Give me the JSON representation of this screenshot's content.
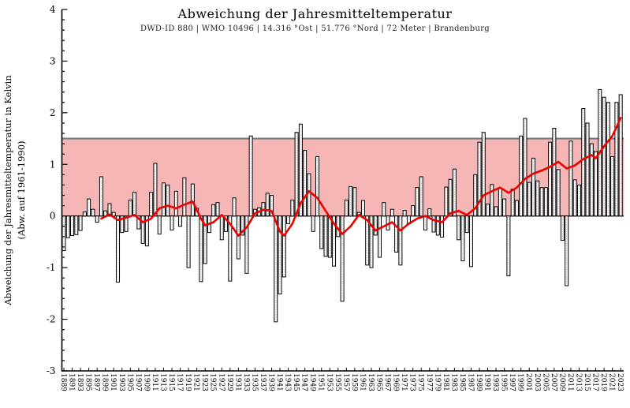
{
  "header": {
    "title": "Abweichung der Jahresmitteltemperatur",
    "subtitle": "DWD-ID 880  |  WMO 10496  |  14.316 °Ost  |  51.776 °Nord  |  72 Meter  |  Brandenburg"
  },
  "y_axis": {
    "label_line1": "Abweichung der Jahresmitteltemperatur in Kelvin",
    "label_line2": "(Abw. auf 1961-1990)",
    "ticks": [
      4,
      3,
      2,
      1,
      0,
      -1,
      -2,
      -3
    ]
  },
  "chart_data": {
    "type": "bar",
    "title": "Abweichung der Jahresmitteltemperatur",
    "subtitle": "DWD-ID 880 | WMO 10496 | 14.316 °Ost | 51.776 °Nord | 72 Meter | Brandenburg",
    "xlabel": "",
    "ylabel": "Abweichung der Jahresmitteltemperatur in Kelvin (Abw. auf 1961-1990)",
    "ylim": [
      -3,
      4
    ],
    "grid": false,
    "legend": "none",
    "reference_band": {
      "from": 0,
      "to": 1.5
    },
    "start_year": 1889,
    "end_year": 2023,
    "x_tick_years": [
      1889,
      1891,
      1893,
      1895,
      1897,
      1899,
      1901,
      1903,
      1905,
      1907,
      1909,
      1911,
      1913,
      1915,
      1917,
      1919,
      1921,
      1923,
      1925,
      1927,
      1929,
      1931,
      1933,
      1935,
      1937,
      1939,
      1941,
      1943,
      1945,
      1947,
      1949,
      1951,
      1953,
      1955,
      1957,
      1959,
      1961,
      1963,
      1965,
      1967,
      1969,
      1971,
      1973,
      1975,
      1977,
      1979,
      1981,
      1983,
      1985,
      1987,
      1989,
      1991,
      1993,
      1995,
      1997,
      1999,
      2001,
      2003,
      2005,
      2007,
      2009,
      2011,
      2013,
      2015,
      2017,
      2019,
      2021,
      2023
    ],
    "values": [
      -0.67,
      -0.42,
      -0.38,
      -0.36,
      -0.28,
      0.08,
      0.33,
      0.13,
      -0.12,
      0.76,
      0.1,
      0.24,
      0.07,
      -1.28,
      -0.32,
      -0.3,
      0.31,
      0.46,
      -0.25,
      -0.53,
      -0.58,
      0.46,
      1.02,
      -0.35,
      0.64,
      0.6,
      -0.27,
      0.48,
      -0.2,
      0.74,
      -1.0,
      0.62,
      0.15,
      -1.27,
      -0.92,
      -0.32,
      0.22,
      0.26,
      -0.46,
      -0.3,
      -1.26,
      0.35,
      -0.83,
      -0.37,
      -1.11,
      1.55,
      0.13,
      0.16,
      0.26,
      0.44,
      0.4,
      -2.05,
      -1.51,
      -1.18,
      -0.15,
      0.31,
      1.62,
      1.78,
      1.27,
      0.82,
      -0.3,
      1.15,
      -0.63,
      -0.78,
      -0.8,
      -0.97,
      -0.4,
      -1.65,
      0.31,
      0.57,
      0.55,
      0.07,
      0.3,
      -0.95,
      -1.0,
      -0.37,
      -0.8,
      0.26,
      -0.27,
      0.13,
      -0.7,
      -0.95,
      0.11,
      -0.15,
      0.2,
      0.55,
      0.76,
      -0.27,
      0.14,
      -0.31,
      -0.37,
      -0.41,
      0.56,
      0.71,
      0.91,
      -0.46,
      -0.87,
      -0.32,
      -0.98,
      0.8,
      1.43,
      1.62,
      0.23,
      0.61,
      0.18,
      0.53,
      0.33,
      -1.16,
      0.52,
      0.3,
      1.55,
      1.89,
      0.65,
      1.12,
      0.68,
      0.55,
      0.55,
      1.43,
      1.7,
      0.9,
      -0.47,
      -1.35,
      1.45,
      0.7,
      0.6,
      2.08,
      1.8,
      1.4,
      1.25,
      2.45,
      2.3,
      2.2,
      1.15,
      2.2,
      2.35
    ],
    "trend_line": {
      "points": [
        [
          1898,
          -0.05
        ],
        [
          1900,
          0.03
        ],
        [
          1902,
          -0.08
        ],
        [
          1904,
          -0.03
        ],
        [
          1906,
          0.02
        ],
        [
          1908,
          -0.12
        ],
        [
          1910,
          -0.05
        ],
        [
          1912,
          0.15
        ],
        [
          1914,
          0.2
        ],
        [
          1916,
          0.15
        ],
        [
          1918,
          0.22
        ],
        [
          1920,
          0.28
        ],
        [
          1922,
          -0.05
        ],
        [
          1923,
          -0.18
        ],
        [
          1925,
          -0.12
        ],
        [
          1927,
          0.02
        ],
        [
          1929,
          -0.15
        ],
        [
          1931,
          -0.38
        ],
        [
          1933,
          -0.22
        ],
        [
          1935,
          0.05
        ],
        [
          1937,
          0.12
        ],
        [
          1939,
          0.1
        ],
        [
          1941,
          -0.3
        ],
        [
          1942,
          -0.38
        ],
        [
          1944,
          -0.15
        ],
        [
          1946,
          0.25
        ],
        [
          1948,
          0.48
        ],
        [
          1950,
          0.35
        ],
        [
          1952,
          0.1
        ],
        [
          1954,
          -0.15
        ],
        [
          1956,
          -0.35
        ],
        [
          1958,
          -0.2
        ],
        [
          1960,
          0.02
        ],
        [
          1962,
          -0.08
        ],
        [
          1964,
          -0.28
        ],
        [
          1966,
          -0.2
        ],
        [
          1968,
          -0.12
        ],
        [
          1970,
          -0.28
        ],
        [
          1972,
          -0.15
        ],
        [
          1974,
          -0.05
        ],
        [
          1976,
          0.0
        ],
        [
          1978,
          -0.08
        ],
        [
          1980,
          -0.12
        ],
        [
          1982,
          0.05
        ],
        [
          1984,
          0.1
        ],
        [
          1986,
          0.02
        ],
        [
          1988,
          0.15
        ],
        [
          1990,
          0.4
        ],
        [
          1992,
          0.48
        ],
        [
          1994,
          0.55
        ],
        [
          1996,
          0.45
        ],
        [
          1998,
          0.55
        ],
        [
          2000,
          0.72
        ],
        [
          2002,
          0.82
        ],
        [
          2004,
          0.88
        ],
        [
          2006,
          0.95
        ],
        [
          2008,
          1.05
        ],
        [
          2010,
          0.92
        ],
        [
          2012,
          0.98
        ],
        [
          2014,
          1.1
        ],
        [
          2016,
          1.18
        ],
        [
          2017,
          1.12
        ],
        [
          2019,
          1.35
        ],
        [
          2021,
          1.55
        ],
        [
          2022,
          1.72
        ],
        [
          2023,
          1.9
        ]
      ]
    },
    "colors": {
      "reference_band": "#f7b6b6",
      "reference_band_border": "#7a7a7a",
      "bar_fill": "#ffffff",
      "bar_border": "#000000",
      "bar_inner_dots": "#aaaaaa",
      "trend_line": "#ee0000",
      "axis": "#000000"
    }
  }
}
